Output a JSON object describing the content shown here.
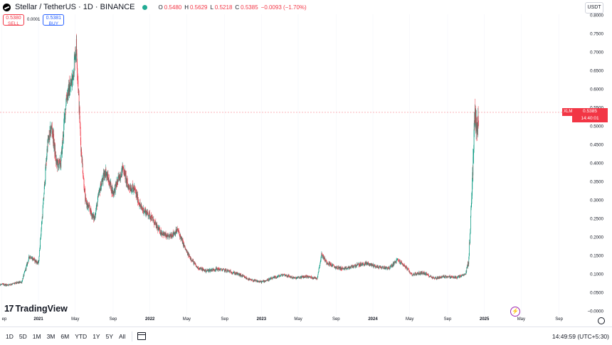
{
  "header": {
    "title": "Stellar / TetherUS · 1D · BINANCE",
    "ohlc": [
      {
        "k": "O",
        "v": "0.5480"
      },
      {
        "k": "H",
        "v": "0.5629"
      },
      {
        "k": "L",
        "v": "0.5218"
      },
      {
        "k": "C",
        "v": "0.5385"
      }
    ],
    "change": "−0.0093 (−1.70%)"
  },
  "trade": {
    "sell_price": "0.5380",
    "sell_label": "SELL",
    "spread": "0.0001",
    "buy_price": "0.5381",
    "buy_label": "BUY"
  },
  "currency": "USDT",
  "price_tag": {
    "symbol": "XLMUSDT",
    "price": "0.5385",
    "countdown": "14:40:01"
  },
  "logo": "TradingView",
  "bottom": {
    "ranges": [
      "1D",
      "5D",
      "1M",
      "3M",
      "6M",
      "YTD",
      "1Y",
      "5Y",
      "All"
    ],
    "clock": "14:49:59 (UTC+5:30)"
  },
  "chart_data": {
    "type": "candlestick",
    "symbol": "XLMUSDT",
    "y_ticks": [
      "0.8000",
      "0.7500",
      "0.7000",
      "0.6500",
      "0.6000",
      "0.5500",
      "0.5000",
      "0.4500",
      "0.4000",
      "0.3500",
      "0.3000",
      "0.2500",
      "0.2000",
      "0.1500",
      "0.1000",
      "0.0500",
      "−0.0000"
    ],
    "ylim": [
      0,
      0.8
    ],
    "x_ticks": [
      {
        "label": "ep",
        "t": 2020.67,
        "year": false
      },
      {
        "label": "2021",
        "t": 2021.0,
        "year": true
      },
      {
        "label": "May",
        "t": 2021.33,
        "year": false
      },
      {
        "label": "Sep",
        "t": 2021.67,
        "year": false
      },
      {
        "label": "2022",
        "t": 2022.0,
        "year": true
      },
      {
        "label": "May",
        "t": 2022.33,
        "year": false
      },
      {
        "label": "Sep",
        "t": 2022.67,
        "year": false
      },
      {
        "label": "2023",
        "t": 2023.0,
        "year": true
      },
      {
        "label": "May",
        "t": 2023.33,
        "year": false
      },
      {
        "label": "Sep",
        "t": 2023.67,
        "year": false
      },
      {
        "label": "2024",
        "t": 2024.0,
        "year": true
      },
      {
        "label": "May",
        "t": 2024.33,
        "year": false
      },
      {
        "label": "Sep",
        "t": 2024.67,
        "year": false
      },
      {
        "label": "2025",
        "t": 2025.0,
        "year": true
      },
      {
        "label": "May",
        "t": 2025.33,
        "year": false
      },
      {
        "label": "Sep",
        "t": 2025.67,
        "year": false
      }
    ],
    "trend": [
      [
        2020.6,
        0.075
      ],
      [
        2020.72,
        0.072
      ],
      [
        2020.85,
        0.08
      ],
      [
        2020.92,
        0.15
      ],
      [
        2021.0,
        0.13
      ],
      [
        2021.04,
        0.28
      ],
      [
        2021.08,
        0.45
      ],
      [
        2021.12,
        0.5
      ],
      [
        2021.16,
        0.4
      ],
      [
        2021.2,
        0.4
      ],
      [
        2021.25,
        0.58
      ],
      [
        2021.3,
        0.62
      ],
      [
        2021.34,
        0.72
      ],
      [
        2021.38,
        0.45
      ],
      [
        2021.42,
        0.3
      ],
      [
        2021.5,
        0.25
      ],
      [
        2021.55,
        0.33
      ],
      [
        2021.6,
        0.38
      ],
      [
        2021.67,
        0.32
      ],
      [
        2021.72,
        0.36
      ],
      [
        2021.76,
        0.39
      ],
      [
        2021.8,
        0.34
      ],
      [
        2021.86,
        0.33
      ],
      [
        2021.92,
        0.28
      ],
      [
        2022.0,
        0.26
      ],
      [
        2022.08,
        0.22
      ],
      [
        2022.16,
        0.2
      ],
      [
        2022.25,
        0.22
      ],
      [
        2022.33,
        0.16
      ],
      [
        2022.42,
        0.12
      ],
      [
        2022.5,
        0.11
      ],
      [
        2022.6,
        0.115
      ],
      [
        2022.7,
        0.11
      ],
      [
        2022.8,
        0.1
      ],
      [
        2022.9,
        0.085
      ],
      [
        2023.0,
        0.08
      ],
      [
        2023.1,
        0.09
      ],
      [
        2023.2,
        0.1
      ],
      [
        2023.3,
        0.09
      ],
      [
        2023.4,
        0.095
      ],
      [
        2023.5,
        0.09
      ],
      [
        2023.54,
        0.155
      ],
      [
        2023.58,
        0.135
      ],
      [
        2023.66,
        0.12
      ],
      [
        2023.75,
        0.115
      ],
      [
        2023.85,
        0.125
      ],
      [
        2023.95,
        0.13
      ],
      [
        2024.05,
        0.12
      ],
      [
        2024.15,
        0.118
      ],
      [
        2024.22,
        0.14
      ],
      [
        2024.28,
        0.125
      ],
      [
        2024.35,
        0.1
      ],
      [
        2024.45,
        0.105
      ],
      [
        2024.55,
        0.09
      ],
      [
        2024.65,
        0.095
      ],
      [
        2024.75,
        0.092
      ],
      [
        2024.83,
        0.1
      ],
      [
        2024.86,
        0.14
      ],
      [
        2024.88,
        0.27
      ],
      [
        2024.9,
        0.42
      ],
      [
        2024.91,
        0.53
      ],
      [
        2024.93,
        0.5
      ],
      [
        2024.95,
        0.5385
      ]
    ],
    "last_price": 0.5385
  }
}
